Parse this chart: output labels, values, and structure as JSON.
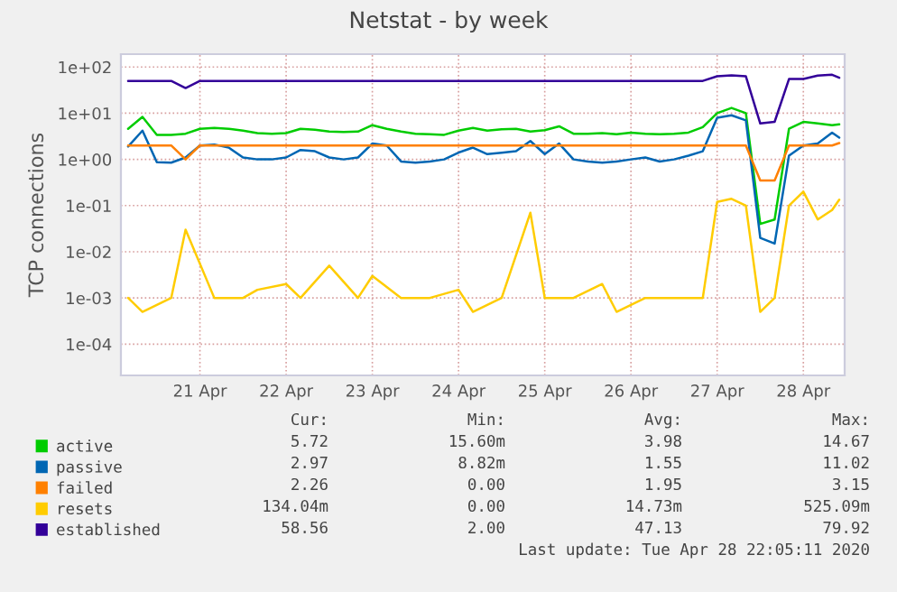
{
  "chart_data": {
    "type": "line",
    "title": "Netstat - by week",
    "ylabel": "TCP connections",
    "log": true,
    "x": [
      "2020-04-20T16:00",
      "2020-04-20T20:00",
      "2020-04-21T00:00",
      "2020-04-21T04:00",
      "2020-04-21T08:00",
      "2020-04-21T12:00",
      "2020-04-21T16:00",
      "2020-04-21T20:00",
      "2020-04-22T00:00",
      "2020-04-22T04:00",
      "2020-04-22T08:00",
      "2020-04-22T12:00",
      "2020-04-22T16:00",
      "2020-04-22T20:00",
      "2020-04-23T00:00",
      "2020-04-23T04:00",
      "2020-04-23T08:00",
      "2020-04-23T12:00",
      "2020-04-23T16:00",
      "2020-04-23T20:00",
      "2020-04-24T00:00",
      "2020-04-24T04:00",
      "2020-04-24T08:00",
      "2020-04-24T12:00",
      "2020-04-24T16:00",
      "2020-04-24T20:00",
      "2020-04-25T00:00",
      "2020-04-25T04:00",
      "2020-04-25T08:00",
      "2020-04-25T12:00",
      "2020-04-25T16:00",
      "2020-04-25T20:00",
      "2020-04-26T00:00",
      "2020-04-26T04:00",
      "2020-04-26T08:00",
      "2020-04-26T12:00",
      "2020-04-26T16:00",
      "2020-04-26T20:00",
      "2020-04-27T00:00",
      "2020-04-27T04:00",
      "2020-04-27T08:00",
      "2020-04-27T12:00",
      "2020-04-27T16:00",
      "2020-04-27T20:00",
      "2020-04-28T00:00",
      "2020-04-28T04:00",
      "2020-04-28T08:00",
      "2020-04-28T12:00",
      "2020-04-28T16:00",
      "2020-04-28T20:00",
      "2020-04-28T22:00"
    ],
    "series": [
      {
        "name": "active",
        "color": "#00cc00",
        "values": [
          4.6,
          8.3,
          3.4,
          3.4,
          3.6,
          4.6,
          4.8,
          4.6,
          4.2,
          3.7,
          3.6,
          3.7,
          4.6,
          4.4,
          4.0,
          3.9,
          4.0,
          5.5,
          4.6,
          4.0,
          3.6,
          3.5,
          3.4,
          4.2,
          4.8,
          4.2,
          4.5,
          4.6,
          4.0,
          4.3,
          5.2,
          3.6,
          3.6,
          3.7,
          3.5,
          3.8,
          3.6,
          3.5,
          3.6,
          3.8,
          5.0,
          10,
          13,
          10,
          0.04,
          0.05,
          4.6,
          6.5,
          6,
          5.5,
          5.72
        ]
      },
      {
        "name": "passive",
        "color": "#0066b3",
        "values": [
          1.9,
          4.2,
          0.87,
          0.85,
          1.1,
          2.0,
          2.1,
          1.8,
          1.1,
          1.0,
          1.0,
          1.1,
          1.6,
          1.5,
          1.1,
          1.0,
          1.1,
          2.2,
          2.0,
          0.9,
          0.85,
          0.9,
          1.0,
          1.4,
          1.8,
          1.3,
          1.4,
          1.5,
          2.5,
          1.3,
          2.2,
          1.0,
          0.9,
          0.85,
          0.9,
          1.0,
          1.1,
          0.9,
          1.0,
          1.2,
          1.5,
          8,
          9,
          7,
          0.02,
          0.015,
          1.2,
          2.0,
          2.2,
          3.8,
          2.97
        ]
      },
      {
        "name": "failed",
        "color": "#ff8000",
        "values": [
          2,
          2,
          2,
          2,
          1,
          2,
          2,
          2,
          2,
          2,
          2,
          2,
          2,
          2,
          2,
          2,
          2,
          2,
          2,
          2,
          2,
          2,
          2,
          2,
          2,
          2,
          2,
          2,
          2,
          2,
          2,
          2,
          2,
          2,
          2,
          2,
          2,
          2,
          2,
          2,
          2,
          2,
          2,
          2,
          0.35,
          0.35,
          2,
          2,
          2,
          2,
          2.26
        ]
      },
      {
        "name": "resets",
        "color": "#ffcc00",
        "values": [
          0.001,
          0.0005,
          null,
          0.001,
          0.03,
          null,
          0.001,
          null,
          0.001,
          0.0015,
          null,
          0.002,
          0.001,
          null,
          0.005,
          null,
          0.001,
          0.003,
          null,
          0.001,
          null,
          0.001,
          null,
          0.0015,
          0.0005,
          null,
          0.001,
          null,
          0.07,
          0.001,
          null,
          0.001,
          null,
          0.002,
          0.0005,
          null,
          0.001,
          null,
          0.001,
          null,
          0.001,
          0.12,
          0.14,
          0.1,
          0.0005,
          0.001,
          0.1,
          0.2,
          0.05,
          0.08,
          0.134
        ]
      },
      {
        "name": "established",
        "color": "#330099",
        "values": [
          50,
          50,
          50,
          50,
          35,
          50,
          50,
          50,
          50,
          50,
          50,
          50,
          50,
          50,
          50,
          50,
          50,
          50,
          50,
          50,
          50,
          50,
          50,
          50,
          50,
          50,
          50,
          50,
          50,
          50,
          50,
          50,
          50,
          50,
          50,
          50,
          50,
          50,
          50,
          50,
          50,
          63,
          66,
          63,
          6,
          6.5,
          55,
          55,
          65,
          68,
          58.56
        ]
      }
    ],
    "xlim": [
      "2020-04-20T14:00",
      "2020-04-28T23:30"
    ],
    "xticks": [
      {
        "value": "2020-04-21T12:00",
        "label": "21 Apr"
      },
      {
        "value": "2020-04-22T12:00",
        "label": "22 Apr"
      },
      {
        "value": "2020-04-23T12:00",
        "label": "23 Apr"
      },
      {
        "value": "2020-04-24T12:00",
        "label": "24 Apr"
      },
      {
        "value": "2020-04-25T12:00",
        "label": "25 Apr"
      },
      {
        "value": "2020-04-26T12:00",
        "label": "26 Apr"
      },
      {
        "value": "2020-04-27T12:00",
        "label": "27 Apr"
      },
      {
        "value": "2020-04-28T12:00",
        "label": "28 Apr"
      }
    ],
    "ylim": [
      2.1e-05,
      190
    ],
    "yticks": [
      {
        "value": 0.0001,
        "label": "1e-04"
      },
      {
        "value": 0.001,
        "label": "1e-03"
      },
      {
        "value": 0.01,
        "label": "1e-02"
      },
      {
        "value": 0.1,
        "label": "1e-01"
      },
      {
        "value": 1,
        "label": "1e+00"
      },
      {
        "value": 10,
        "label": "1e+01"
      },
      {
        "value": 100,
        "label": "1e+02"
      }
    ],
    "grid": true,
    "legend": "bottom",
    "line_style": "solid",
    "marker": "none",
    "annotations": [
      "Cur:",
      "Min:",
      "Avg:",
      "Max:",
      "5.72",
      "15.60m",
      "3.98",
      "14.67",
      "2.97",
      "8.82m",
      "1.55",
      "11.02",
      "2.26",
      "0.00",
      "1.95",
      "3.15",
      "134.04m",
      "0.00",
      "14.73m",
      "525.09m",
      "58.56",
      "2.00",
      "47.13",
      "79.92",
      "Last update: Tue Apr 28 22:05:11 2020"
    ]
  }
}
